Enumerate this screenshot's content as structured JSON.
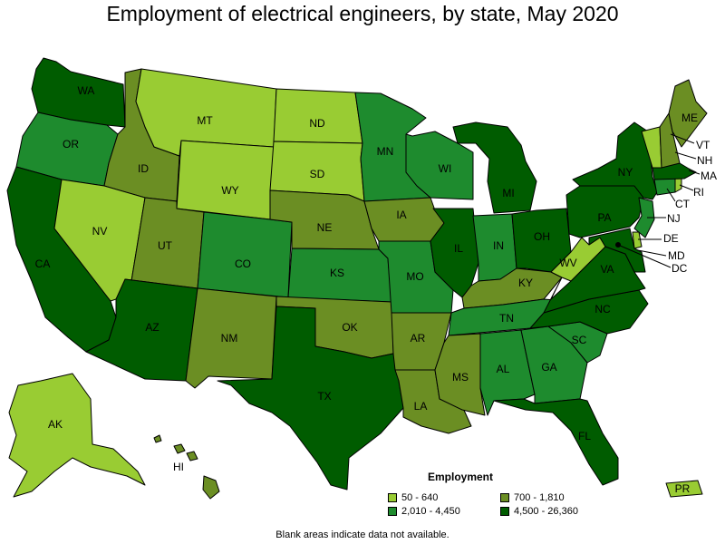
{
  "title": "Employment of electrical engineers, by state, May 2020",
  "note": "Blank areas indicate data not available.",
  "legend": {
    "title": "Employment",
    "items": [
      {
        "label": "50 - 640",
        "color": "#99cc33"
      },
      {
        "label": "700 - 1,810",
        "color": "#6b8e23"
      },
      {
        "label": "2,010 - 4,450",
        "color": "#1e8b2e"
      },
      {
        "label": "4,500 - 26,360",
        "color": "#005c00"
      }
    ]
  },
  "states": {
    "WA": {
      "label": "WA",
      "bin": 3
    },
    "OR": {
      "label": "OR",
      "bin": 2
    },
    "CA": {
      "label": "CA",
      "bin": 3
    },
    "ID": {
      "label": "ID",
      "bin": 1
    },
    "NV": {
      "label": "NV",
      "bin": 0
    },
    "MT": {
      "label": "MT",
      "bin": 0
    },
    "WY": {
      "label": "WY",
      "bin": 0
    },
    "UT": {
      "label": "UT",
      "bin": 1
    },
    "AZ": {
      "label": "AZ",
      "bin": 3
    },
    "CO": {
      "label": "CO",
      "bin": 2
    },
    "NM": {
      "label": "NM",
      "bin": 1
    },
    "ND": {
      "label": "ND",
      "bin": 0
    },
    "SD": {
      "label": "SD",
      "bin": 0
    },
    "NE": {
      "label": "NE",
      "bin": 1
    },
    "KS": {
      "label": "KS",
      "bin": 2
    },
    "OK": {
      "label": "OK",
      "bin": 1
    },
    "TX": {
      "label": "TX",
      "bin": 3
    },
    "MN": {
      "label": "MN",
      "bin": 2
    },
    "IA": {
      "label": "IA",
      "bin": 1
    },
    "MO": {
      "label": "MO",
      "bin": 2
    },
    "AR": {
      "label": "AR",
      "bin": 1
    },
    "LA": {
      "label": "LA",
      "bin": 1
    },
    "WI": {
      "label": "WI",
      "bin": 2
    },
    "IL": {
      "label": "IL",
      "bin": 3
    },
    "MI": {
      "label": "MI",
      "bin": 3
    },
    "IN": {
      "label": "IN",
      "bin": 2
    },
    "OH": {
      "label": "OH",
      "bin": 3
    },
    "KY": {
      "label": "KY",
      "bin": 1
    },
    "TN": {
      "label": "TN",
      "bin": 2
    },
    "MS": {
      "label": "MS",
      "bin": 1
    },
    "AL": {
      "label": "AL",
      "bin": 2
    },
    "GA": {
      "label": "GA",
      "bin": 2
    },
    "FL": {
      "label": "FL",
      "bin": 3
    },
    "SC": {
      "label": "SC",
      "bin": 2
    },
    "NC": {
      "label": "NC",
      "bin": 3
    },
    "VA": {
      "label": "VA",
      "bin": 3
    },
    "WV": {
      "label": "WV",
      "bin": 0
    },
    "PA": {
      "label": "PA",
      "bin": 3
    },
    "NY": {
      "label": "NY",
      "bin": 3
    },
    "NJ": {
      "label": "NJ",
      "bin": 2
    },
    "DE": {
      "label": "DE",
      "bin": 0
    },
    "MD": {
      "label": "MD",
      "bin": 3
    },
    "DC": {
      "label": "DC",
      "bin": 0
    },
    "CT": {
      "label": "CT",
      "bin": 2
    },
    "RI": {
      "label": "RI",
      "bin": 0
    },
    "MA": {
      "label": "MA",
      "bin": 3
    },
    "VT": {
      "label": "VT",
      "bin": 0
    },
    "NH": {
      "label": "NH",
      "bin": 1
    },
    "ME": {
      "label": "ME",
      "bin": 1
    },
    "AK": {
      "label": "AK",
      "bin": 0
    },
    "HI": {
      "label": "HI",
      "bin": 1
    },
    "PR": {
      "label": "PR",
      "bin": 0
    }
  }
}
